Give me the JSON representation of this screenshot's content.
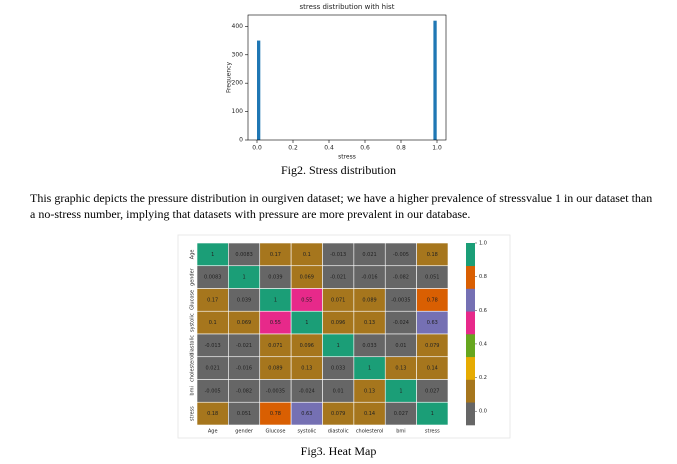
{
  "chart_data": [
    {
      "type": "histogram",
      "title": "stress distribution with hist",
      "xlabel": "stress",
      "ylabel": "Frequency",
      "bins": [
        0,
        0.02,
        0.04,
        0.06,
        0.08,
        0.1,
        0.12,
        0.14,
        0.16,
        0.18,
        0.2,
        0.22,
        0.24,
        0.26,
        0.28,
        0.3,
        0.32,
        0.34,
        0.36,
        0.38,
        0.4,
        0.42,
        0.44,
        0.46,
        0.48,
        0.5,
        0.52,
        0.54,
        0.56,
        0.58,
        0.6,
        0.62,
        0.64,
        0.66,
        0.68,
        0.7,
        0.72,
        0.74,
        0.76,
        0.78,
        0.8,
        0.82,
        0.84,
        0.86,
        0.88,
        0.9,
        0.92,
        0.94,
        0.96,
        0.98,
        1
      ],
      "values": [
        350,
        0,
        0,
        0,
        0,
        0,
        0,
        0,
        0,
        0,
        0,
        0,
        0,
        0,
        0,
        0,
        0,
        0,
        0,
        0,
        0,
        0,
        0,
        0,
        0,
        0,
        0,
        0,
        0,
        0,
        0,
        0,
        0,
        0,
        0,
        0,
        0,
        0,
        0,
        0,
        0,
        0,
        0,
        0,
        0,
        0,
        0,
        0,
        0,
        420
      ],
      "color": "#1f77b4",
      "xlim": [
        -0.05,
        1.05
      ],
      "ylim": [
        0,
        440
      ],
      "xticks": [
        {
          "value": 0,
          "label": "0.0"
        },
        {
          "value": 0.2,
          "label": "0.2"
        },
        {
          "value": 0.4,
          "label": "0.4"
        },
        {
          "value": 0.6,
          "label": "0.6"
        },
        {
          "value": 0.8,
          "label": "0.8"
        },
        {
          "value": 1,
          "label": "1.0"
        }
      ],
      "yticks": [
        0,
        100,
        200,
        300,
        400
      ]
    },
    {
      "type": "heatmap",
      "x_labels": [
        "Age",
        "gender",
        "Glucose",
        "systolic",
        "diastolic",
        "cholesterol",
        "bmi",
        "stress"
      ],
      "y_labels": [
        "Age",
        "gender",
        "Glucose",
        "systolic",
        "diastolic",
        "cholesterol",
        "bmi",
        "stress"
      ],
      "values": [
        [
          1,
          0.0083,
          0.17,
          0.1,
          -0.013,
          0.021,
          -0.005,
          0.18
        ],
        [
          0.0083,
          1,
          0.039,
          0.069,
          -0.021,
          -0.016,
          -0.082,
          0.051
        ],
        [
          0.17,
          0.039,
          1,
          0.55,
          0.071,
          0.089,
          -0.0035,
          0.78
        ],
        [
          0.1,
          0.069,
          0.55,
          1,
          0.096,
          0.13,
          -0.024,
          0.63
        ],
        [
          -0.013,
          -0.021,
          0.071,
          0.096,
          1,
          0.033,
          0.01,
          0.079
        ],
        [
          0.021,
          -0.016,
          0.089,
          0.13,
          0.033,
          1,
          0.13,
          0.14
        ],
        [
          -0.005,
          -0.082,
          -0.0035,
          -0.024,
          0.01,
          0.13,
          1,
          0.027
        ],
        [
          0.18,
          0.051,
          0.78,
          0.63,
          0.079,
          0.14,
          0.027,
          1
        ]
      ],
      "colors": [
        "#666666",
        "#a6761d",
        "#e6ab02",
        "#66a61e",
        "#e7298a",
        "#7570b3",
        "#d95f02",
        "#1b9e77"
      ],
      "zlim": [
        -0.082,
        1
      ],
      "colorbar_ticks": [
        {
          "value": 0,
          "label": "0.0"
        },
        {
          "value": 0.2,
          "label": "0.2"
        },
        {
          "value": 0.4,
          "label": "0.4"
        },
        {
          "value": 0.6,
          "label": "0.6"
        },
        {
          "value": 0.8,
          "label": "0.8"
        },
        {
          "value": 1,
          "label": "1.0"
        }
      ]
    }
  ],
  "captions": [
    "Fig2. Stress distribution",
    "Fig3. Heat Map"
  ],
  "paragraph": "This graphic depicts the pressure distribution in ourgiven dataset; we have a higher prevalence of stressvalue 1 in our dataset than a no-stress number, implying that datasets with pressure are more prevalent in our database."
}
